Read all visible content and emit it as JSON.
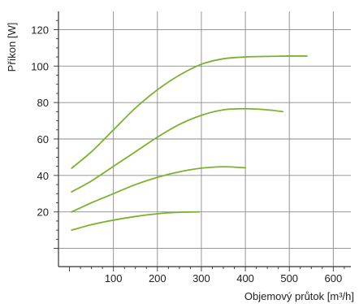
{
  "chart_data": {
    "type": "line",
    "xlabel": "Objemový průtok [m³/h]",
    "ylabel": "Příkon [W]",
    "xlim": [
      -25,
      640
    ],
    "ylim": [
      -10,
      130
    ],
    "x_ticks": [
      100,
      200,
      300,
      400,
      500,
      600
    ],
    "y_ticks": [
      20,
      40,
      60,
      80,
      100,
      120
    ],
    "x_grid": [
      100,
      200,
      300,
      400,
      500,
      600
    ],
    "y_grid": [
      0,
      20,
      40,
      60,
      80,
      100,
      120
    ],
    "grid": true,
    "line_color": "#7ab22e",
    "series": [
      {
        "points": [
          [
            5,
            44
          ],
          [
            50,
            53
          ],
          [
            100,
            65
          ],
          [
            150,
            77
          ],
          [
            200,
            87
          ],
          [
            250,
            95
          ],
          [
            300,
            101
          ],
          [
            350,
            104
          ],
          [
            400,
            105
          ],
          [
            450,
            105.3
          ],
          [
            500,
            105.5
          ],
          [
            540,
            105.5
          ]
        ]
      },
      {
        "points": [
          [
            5,
            31
          ],
          [
            50,
            37
          ],
          [
            100,
            45
          ],
          [
            150,
            53
          ],
          [
            200,
            61
          ],
          [
            250,
            68
          ],
          [
            300,
            73
          ],
          [
            350,
            76
          ],
          [
            400,
            76.6
          ],
          [
            450,
            76
          ],
          [
            485,
            75
          ]
        ]
      },
      {
        "points": [
          [
            5,
            20
          ],
          [
            50,
            25
          ],
          [
            100,
            30
          ],
          [
            150,
            35
          ],
          [
            200,
            39
          ],
          [
            250,
            42
          ],
          [
            300,
            44
          ],
          [
            350,
            44.8
          ],
          [
            400,
            44.2
          ]
        ]
      },
      {
        "points": [
          [
            5,
            10
          ],
          [
            50,
            13
          ],
          [
            100,
            15.5
          ],
          [
            150,
            17.5
          ],
          [
            200,
            19
          ],
          [
            250,
            19.8
          ],
          [
            295,
            20
          ]
        ]
      }
    ]
  }
}
